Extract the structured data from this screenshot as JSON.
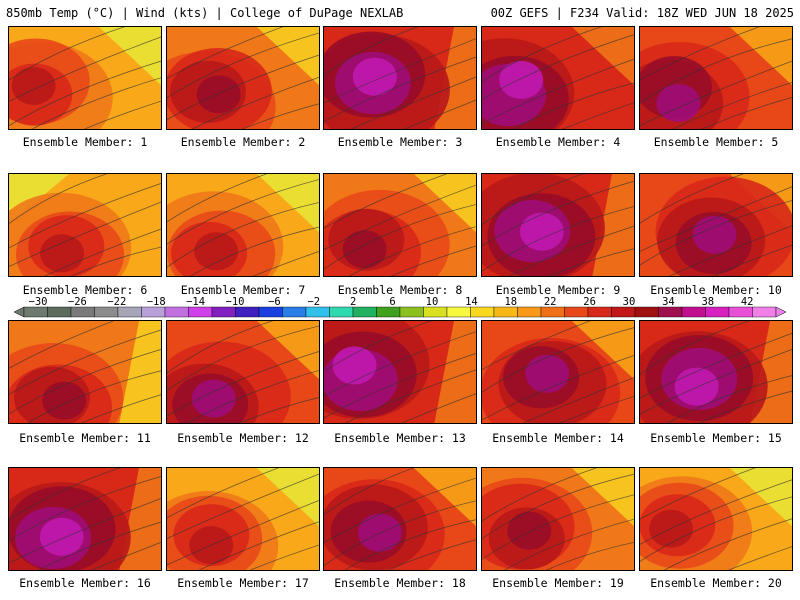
{
  "header": {
    "left": "850mb Temp (°C) | Wind (kts) | College of DuPage NEXLAB",
    "right": "00Z GEFS | F234 Valid: 18Z WED JUN 18 2025"
  },
  "colorbar": {
    "ticks": [
      "-30",
      "-26",
      "-22",
      "-18",
      "-14",
      "-10",
      "-6",
      "-2",
      "2",
      "6",
      "10",
      "14",
      "18",
      "22",
      "26",
      "30",
      "34",
      "38",
      "42"
    ],
    "colors": [
      "#6d7a6d",
      "#5d6b5d",
      "#7a7a7a",
      "#8c8c8c",
      "#a6a6b8",
      "#b8a0d8",
      "#c070e0",
      "#d040e8",
      "#8020c0",
      "#4020c0",
      "#1a3fe0",
      "#2a7ee8",
      "#30c0e8",
      "#30d8b0",
      "#20b060",
      "#40a020",
      "#8cc020",
      "#d8e020",
      "#f8f840",
      "#f8d820",
      "#f8b818",
      "#f89818",
      "#f07018",
      "#e84818",
      "#d82818",
      "#c01818",
      "#a01010",
      "#a01050",
      "#c01090",
      "#d820c0",
      "#e850d8",
      "#f080e8"
    ]
  },
  "palette": [
    "#70b828",
    "#a8d030",
    "#e8e838",
    "#f8d020",
    "#f8a818",
    "#f07818",
    "#e84818",
    "#d82818",
    "#b81818",
    "#980c28",
    "#a00c78",
    "#c018b0"
  ],
  "members": [
    {
      "caption": "Ensemble Member: 1",
      "warmth": 0.55,
      "hot_x": 0.2,
      "hot_y": 0.6,
      "cool": "tr"
    },
    {
      "caption": "Ensemble Member: 2",
      "warmth": 0.62,
      "hot_x": 0.3,
      "hot_y": 0.7,
      "cool": "tr"
    },
    {
      "caption": "Ensemble Member: 3",
      "warmth": 0.78,
      "hot_x": 0.35,
      "hot_y": 0.55,
      "cool": "r"
    },
    {
      "caption": "Ensemble Member: 4",
      "warmth": 0.8,
      "hot_x": 0.2,
      "hot_y": 0.6,
      "cool": "tr"
    },
    {
      "caption": "Ensemble Member: 5",
      "warmth": 0.75,
      "hot_x": 0.25,
      "hot_y": 0.65,
      "cool": "tr"
    },
    {
      "caption": "Ensemble Member: 6",
      "warmth": 0.5,
      "hot_x": 0.4,
      "hot_y": 0.7,
      "cool": "tl"
    },
    {
      "caption": "Ensemble Member: 7",
      "warmth": 0.5,
      "hot_x": 0.3,
      "hot_y": 0.7,
      "cool": "tr"
    },
    {
      "caption": "Ensemble Member: 8",
      "warmth": 0.65,
      "hot_x": 0.3,
      "hot_y": 0.7,
      "cool": "tr"
    },
    {
      "caption": "Ensemble Member: 9",
      "warmth": 0.8,
      "hot_x": 0.35,
      "hot_y": 0.55,
      "cool": "r"
    },
    {
      "caption": "Ensemble Member: 10",
      "warmth": 0.72,
      "hot_x": 0.5,
      "hot_y": 0.6,
      "cool": "tr"
    },
    {
      "caption": "Ensemble Member: 11",
      "warmth": 0.6,
      "hot_x": 0.3,
      "hot_y": 0.8,
      "cool": "r"
    },
    {
      "caption": "Ensemble Member: 12",
      "warmth": 0.68,
      "hot_x": 0.3,
      "hot_y": 0.8,
      "cool": "tr"
    },
    {
      "caption": "Ensemble Member: 13",
      "warmth": 0.8,
      "hot_x": 0.25,
      "hot_y": 0.5,
      "cool": "r"
    },
    {
      "caption": "Ensemble Member: 14",
      "warmth": 0.72,
      "hot_x": 0.4,
      "hot_y": 0.6,
      "cool": "tr"
    },
    {
      "caption": "Ensemble Member: 15",
      "warmth": 0.78,
      "hot_x": 0.4,
      "hot_y": 0.55,
      "cool": "r"
    },
    {
      "caption": "Ensemble Member: 16",
      "warmth": 0.8,
      "hot_x": 0.3,
      "hot_y": 0.6,
      "cool": "r"
    },
    {
      "caption": "Ensemble Member: 17",
      "warmth": 0.52,
      "hot_x": 0.3,
      "hot_y": 0.7,
      "cool": "tr"
    },
    {
      "caption": "Ensemble Member: 18",
      "warmth": 0.72,
      "hot_x": 0.3,
      "hot_y": 0.6,
      "cool": "tr"
    },
    {
      "caption": "Ensemble Member: 19",
      "warmth": 0.65,
      "hot_x": 0.3,
      "hot_y": 0.6,
      "cool": "tr"
    },
    {
      "caption": "Ensemble Member: 20",
      "warmth": 0.55,
      "hot_x": 0.25,
      "hot_y": 0.6,
      "cool": "tr"
    }
  ]
}
